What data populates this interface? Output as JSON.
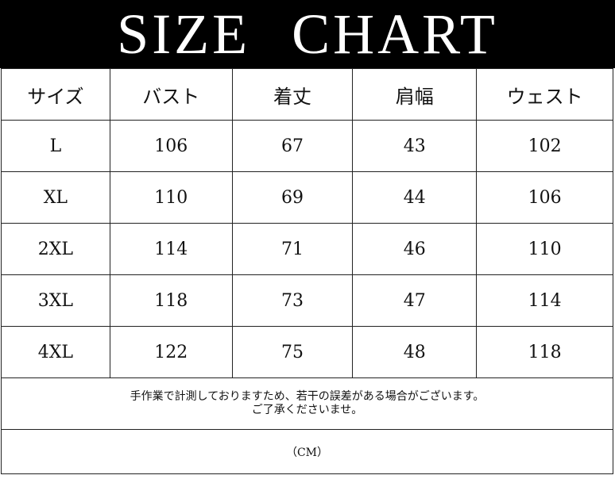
{
  "title": "SIZE CHART",
  "columns": [
    "サイズ",
    "バスト",
    "着丈",
    "肩幅",
    "ウェスト"
  ],
  "rows": [
    [
      "L",
      "106",
      "67",
      "43",
      "102"
    ],
    [
      "XL",
      "110",
      "69",
      "44",
      "106"
    ],
    [
      "2XL",
      "114",
      "71",
      "46",
      "110"
    ],
    [
      "3XL",
      "118",
      "73",
      "47",
      "114"
    ],
    [
      "4XL",
      "122",
      "75",
      "48",
      "118"
    ]
  ],
  "note_line1": "手作業で計測しておりますため、若干の誤差がある場合がございます。",
  "note_line2": "ご了承くださいませ。",
  "unit": "（CM）"
}
